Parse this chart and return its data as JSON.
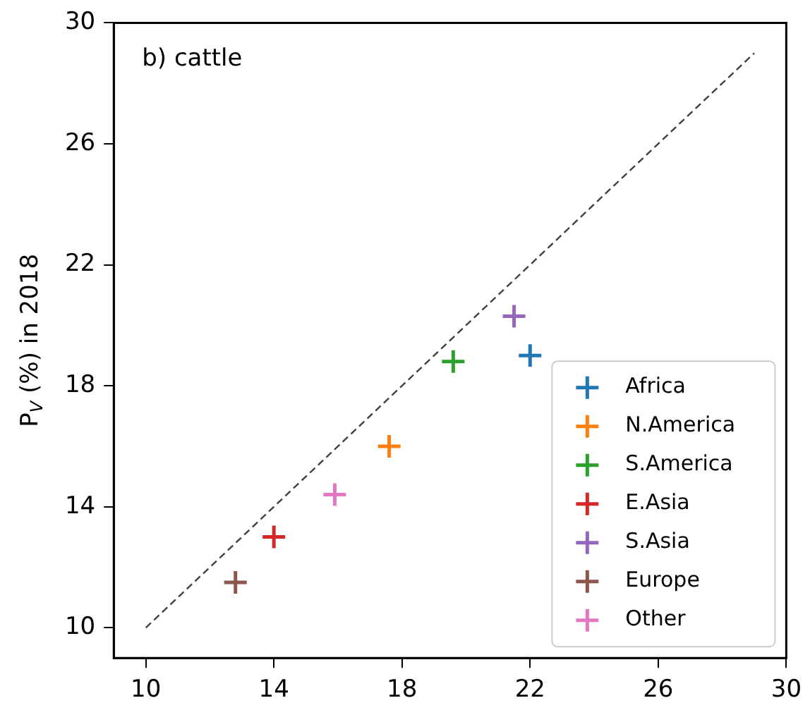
{
  "chart_data": {
    "type": "scatter",
    "ylabel": "P$_{V}$ (%) in 2018",
    "annotations": [
      "b) cattle"
    ],
    "xlim": [
      9,
      30
    ],
    "ylim": [
      9,
      30
    ],
    "xticks": [
      10,
      14,
      18,
      22,
      26,
      30
    ],
    "yticks": [
      10,
      14,
      18,
      22,
      26,
      30
    ],
    "grid": false,
    "legend": "bottom right",
    "marker": "cross",
    "series": [
      {
        "name": "Africa",
        "color": "#1f77b4",
        "x": [
          22.0
        ],
        "values": [
          19.0
        ]
      },
      {
        "name": "N.America",
        "color": "#ff7f0e",
        "x": [
          17.6
        ],
        "values": [
          16.0
        ]
      },
      {
        "name": "S.America",
        "color": "#2ca02c",
        "x": [
          19.6
        ],
        "values": [
          18.8
        ]
      },
      {
        "name": "E.Asia",
        "color": "#d62728",
        "x": [
          14.0
        ],
        "values": [
          13.0
        ]
      },
      {
        "name": "S.Asia",
        "color": "#9467bd",
        "x": [
          21.5
        ],
        "values": [
          20.3
        ]
      },
      {
        "name": "Europe",
        "color": "#8c564b",
        "x": [
          12.8
        ],
        "values": [
          11.5
        ]
      },
      {
        "name": "Other",
        "color": "#e377c2",
        "x": [
          15.9
        ],
        "values": [
          14.4
        ]
      },
      {
        "type": "line",
        "color": "#404040",
        "line_style": "dashed",
        "marker": "none",
        "x": [
          10,
          29
        ],
        "values": [
          10,
          29
        ]
      }
    ]
  }
}
